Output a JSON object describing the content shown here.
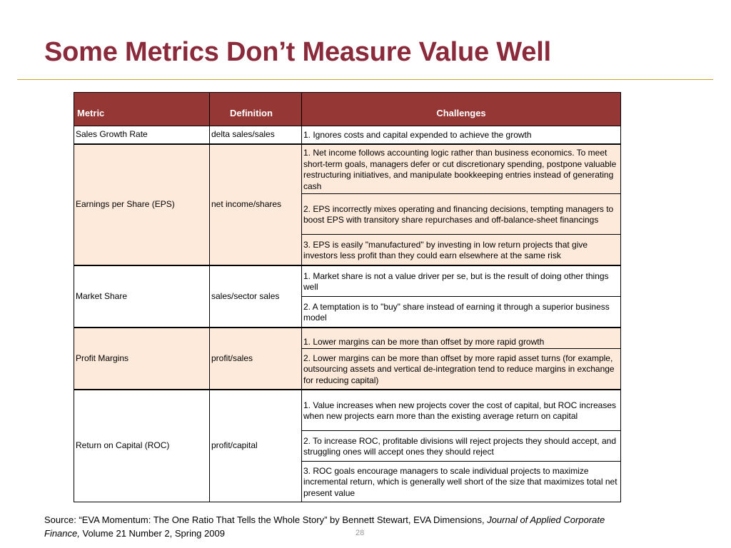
{
  "slide": {
    "title": "Some Metrics Don’t Measure Value Well",
    "page_number": "28"
  },
  "table": {
    "headers": [
      "Metric",
      "Definition",
      "Challenges"
    ],
    "rows": [
      {
        "metric": "Sales Growth Rate",
        "definition": "delta sales/sales",
        "challenges": [
          "1.  Ignores costs and capital expended to achieve the growth"
        ]
      },
      {
        "metric": "Earnings per Share (EPS)",
        "definition": "net income/shares",
        "challenges": [
          "1.  Net income follows accounting logic rather than business economics.  To meet short-term goals, managers defer or cut discretionary spending, postpone valuable restructuring initiatives, and manipulate bookkeeping entries instead of generating cash",
          "2.  EPS incorrectly mixes operating and financing decisions, tempting managers to boost EPS with transitory share repurchases and off-balance-sheet financings",
          "3.  EPS is easily \"manufactured\" by investing in low return projects that give investors less profit than they could earn elsewhere at the same risk"
        ]
      },
      {
        "metric": "Market Share",
        "definition": "sales/sector sales",
        "challenges": [
          "1.  Market share is not a value driver per se, but is the result of doing other things well",
          "2.  A temptation is to \"buy\" share instead of earning it through a superior business model"
        ]
      },
      {
        "metric": "Profit Margins",
        "definition": "profit/sales",
        "challenges": [
          "1.  Lower margins can be more than offset by more rapid growth",
          "2.  Lower margins can be more than offset by more rapid asset turns (for example, outsourcing assets and vertical de-integration tend to reduce margins in exchange for reducing capital)"
        ]
      },
      {
        "metric": "Return on Capital (ROC)",
        "definition": "profit/capital",
        "challenges": [
          "1.  Value increases when new projects cover the cost of capital, but ROC increases when new projects earn more than the existing average return on capital",
          "2.  To increase ROC, profitable divisions will reject projects they should accept, and struggling ones will accept ones they should reject",
          "3.  ROC goals encourage managers to scale individual projects to maximize incremental return, which is generally well short of the size that maximizes total net present value"
        ]
      }
    ]
  },
  "source": {
    "prefix": "Source: “EVA Momentum: The One Ratio That Tells the Whole Story” by Bennett Stewart, EVA Dimensions, ",
    "journal": "Journal of Applied Corporate Finance,",
    "suffix": " Volume 21 Number 2, Spring 2009"
  },
  "colors": {
    "title": "#8b2a3a",
    "header_bg": "#953735",
    "rule": "#c9a227",
    "shaded_row": "#fdeada"
  }
}
